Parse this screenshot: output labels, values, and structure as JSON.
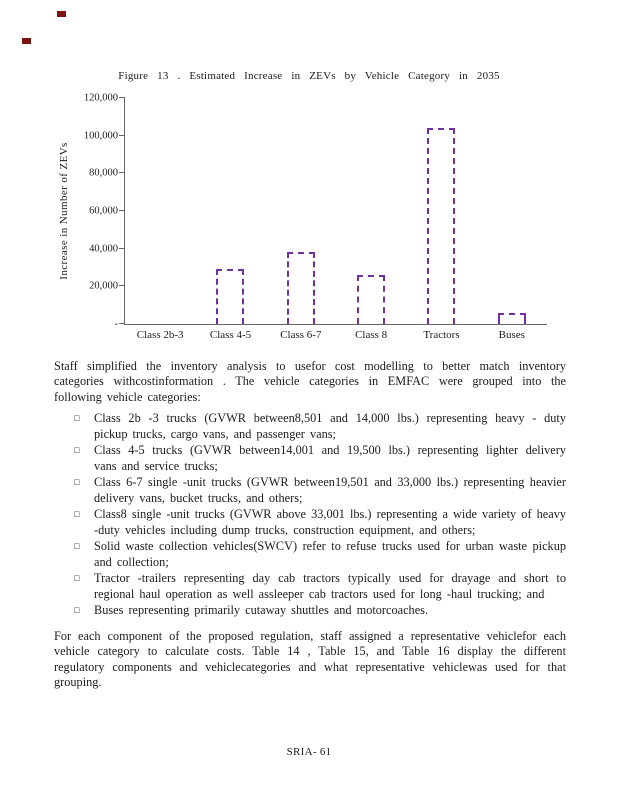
{
  "figure": {
    "title": "Figure 13 . Estimated Increase in ZEVs by Vehicle Category in 2035"
  },
  "chart_data": {
    "type": "bar",
    "title": "Figure 13. Estimated Increase in ZEVs by Vehicle Category in 2035",
    "categories": [
      "Class 2b-3",
      "Class 4-5",
      "Class 6-7",
      "Class 8",
      "Tractors",
      "Buses"
    ],
    "values": [
      0,
      29000,
      38000,
      26000,
      104000,
      6000
    ],
    "ylabel": "Increase in Number of ZEVs",
    "xlabel": "",
    "ylim": [
      0,
      120000
    ],
    "ytick_interval": 20000,
    "ytick_labels_bottom_to_top": [
      "-",
      "20,000",
      "40,000",
      "60,000",
      "80,000",
      "100,000",
      "120,000"
    ],
    "grid": false,
    "legend": "none",
    "bar_fill": "#ffffff",
    "bar_border_color": "#7030a0",
    "bar_border_style": "dashed"
  },
  "body": {
    "bullet_glyph": "□",
    "paragraph1": "Staff simplified the inventory analysis to usefor cost modelling to better match inventory categories withcostinformation . The vehicle categories in EMFAC were grouped into the following vehicle categories:",
    "bullets": [
      "Class 2b -3 trucks (GVWR between8,501 and 14,000 lbs.) representing heavy - duty pickup trucks, cargo vans, and passenger vans;",
      "Class 4-5 trucks (GVWR between14,001 and 19,500 lbs.) representing lighter delivery vans and service trucks;",
      "Class 6-7 single -unit trucks (GVWR between19,501 and 33,000 lbs.) representing heavier delivery vans, bucket trucks, and others;",
      "Class8 single -unit trucks (GVWR above 33,001 lbs.) representing a wide variety of heavy -duty vehicles including dump trucks, construction equipment, and others;",
      "Solid waste collection vehicles(SWCV) refer to refuse trucks used for urban waste pickup and collection;",
      "Tractor -trailers representing day cab tractors typically used for drayage and short to regional haul operation as well assleeper cab tractors used for long -haul trucking; and",
      "Buses representing primarily cutaway shuttles and motorcoaches."
    ],
    "paragraph2": "For each component of the proposed regulation, staff assigned a representative vehiclefor each vehicle category to calculate costs. Table 14 , Table 15, and Table 16 display the different regulatory components and vehiclecategories and what representative vehiclewas used for that grouping."
  },
  "footer": {
    "page_label": "SRIA- 61"
  }
}
